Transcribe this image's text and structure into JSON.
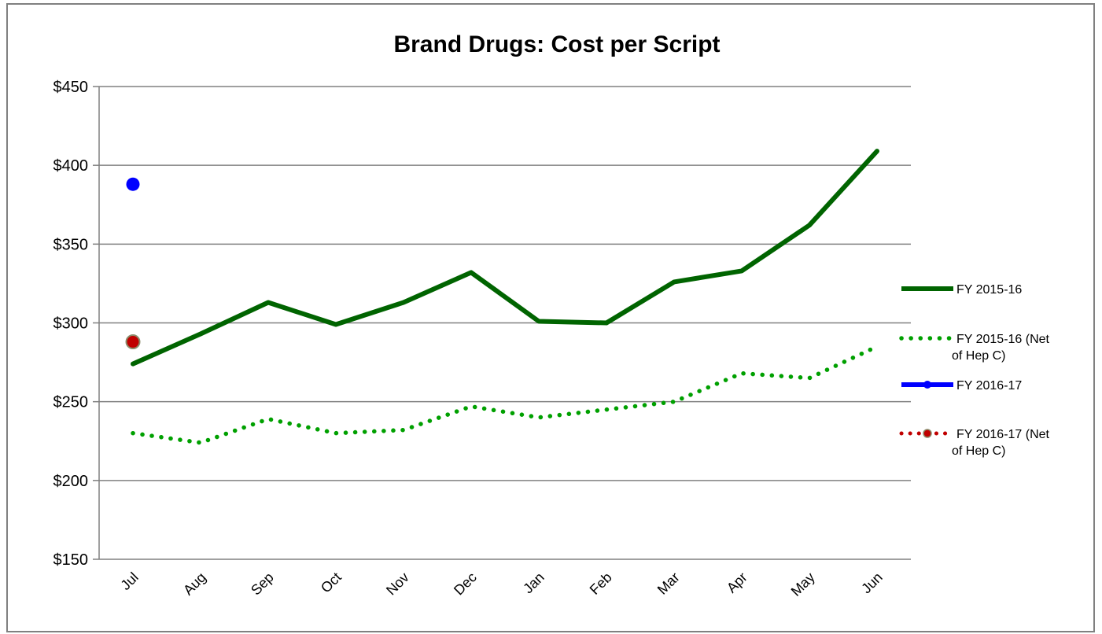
{
  "chart_data": {
    "type": "line",
    "title": "Brand Drugs: Cost per Script",
    "categories": [
      "Jul",
      "Aug",
      "Sep",
      "Oct",
      "Nov",
      "Dec",
      "Jan",
      "Feb",
      "Mar",
      "Apr",
      "May",
      "Jun"
    ],
    "y_ticks": [
      "$150",
      "$200",
      "$250",
      "$300",
      "$350",
      "$400",
      "$450"
    ],
    "ylim": [
      150,
      450
    ],
    "grid": true,
    "legend_position": "right",
    "series": [
      {
        "name": "FY 2015-16",
        "name_lines": [
          "FY 2015-16"
        ],
        "style": "solid",
        "color": "#006400",
        "values": [
          274,
          293,
          313,
          299,
          313,
          332,
          301,
          300,
          326,
          333,
          362,
          409
        ]
      },
      {
        "name": "FY 2015-16 (Net of Hep C)",
        "name_lines": [
          "FY 2015-16 (Net",
          "of Hep C)"
        ],
        "style": "dotted",
        "color": "#00A000",
        "values": [
          230,
          224,
          239,
          230,
          232,
          247,
          240,
          245,
          250,
          268,
          265,
          285
        ]
      },
      {
        "name": "FY 2016-17",
        "name_lines": [
          "FY 2016-17"
        ],
        "style": "marker",
        "color": "#0000FF",
        "values": [
          388,
          null,
          null,
          null,
          null,
          null,
          null,
          null,
          null,
          null,
          null,
          null
        ]
      },
      {
        "name": "FY 2016-17 (Net of Hep C)",
        "name_lines": [
          "FY 2016-17 (Net",
          "of Hep C)"
        ],
        "style": "dotted-marker",
        "color": "#C00000",
        "marker_border": "#8B8B6B",
        "values": [
          288,
          null,
          null,
          null,
          null,
          null,
          null,
          null,
          null,
          null,
          null,
          null
        ]
      }
    ]
  }
}
